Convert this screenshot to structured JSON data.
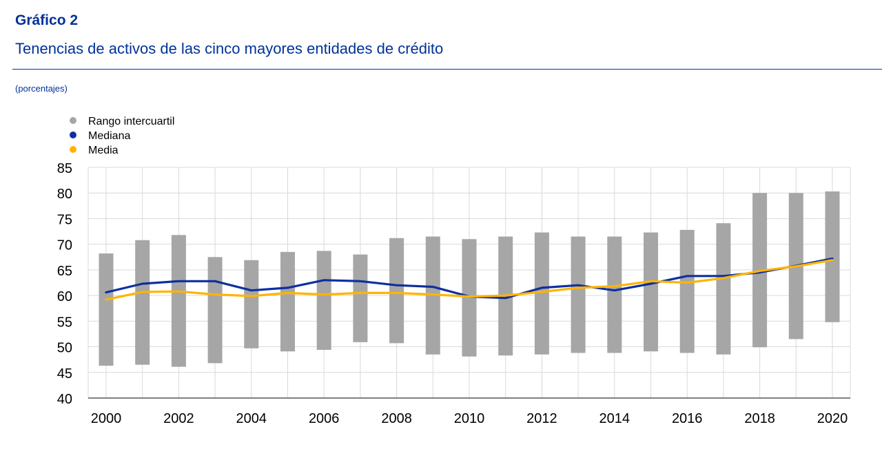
{
  "header": {
    "title": "Gráfico 2",
    "subtitle": "Tenencias de activos de las cinco mayores entidades de crédito",
    "unit": "(porcentajes)"
  },
  "colors": {
    "title": "#003299",
    "range": "#a6a6a6",
    "median": "#0d2fa0",
    "mean": "#ffb400",
    "grid": "#d9d9d9"
  },
  "chart_data": {
    "type": "bar",
    "title": "",
    "xlabel": "",
    "ylabel": "",
    "ylim": [
      40,
      85
    ],
    "yticks": [
      40,
      45,
      50,
      55,
      60,
      65,
      70,
      75,
      80,
      85
    ],
    "grid": true,
    "legend_position": "top-left",
    "x": [
      2000,
      2001,
      2002,
      2003,
      2004,
      2005,
      2006,
      2007,
      2008,
      2009,
      2010,
      2011,
      2012,
      2013,
      2014,
      2015,
      2016,
      2017,
      2018,
      2019,
      2020
    ],
    "xtick_labels": [
      "2000",
      "2002",
      "2004",
      "2006",
      "2008",
      "2010",
      "2012",
      "2014",
      "2016",
      "2018",
      "2020"
    ],
    "series": [
      {
        "name": "Rango intercuartil",
        "kind": "range-bar",
        "color": "#a6a6a6",
        "low": [
          46.3,
          46.5,
          46.1,
          46.8,
          49.7,
          49.1,
          49.4,
          50.9,
          50.7,
          48.5,
          48.1,
          48.3,
          48.5,
          48.8,
          48.8,
          49.1,
          48.8,
          48.5,
          49.9,
          51.5,
          54.8
        ],
        "high": [
          68.2,
          70.8,
          71.8,
          67.5,
          66.9,
          68.5,
          68.7,
          68.0,
          71.2,
          71.5,
          71.0,
          71.5,
          72.3,
          71.5,
          71.5,
          72.3,
          72.8,
          74.1,
          80.0,
          80.0,
          80.3
        ]
      },
      {
        "name": "Mediana",
        "kind": "line",
        "color": "#0d2fa0",
        "values": [
          60.6,
          62.3,
          62.8,
          62.8,
          61.0,
          61.5,
          63.0,
          62.8,
          62.0,
          61.7,
          59.8,
          59.5,
          61.5,
          62.0,
          61.0,
          62.3,
          63.8,
          63.8,
          64.5,
          65.8,
          67.2
        ]
      },
      {
        "name": "Media",
        "kind": "line",
        "color": "#ffb400",
        "values": [
          59.2,
          60.7,
          60.8,
          60.2,
          59.9,
          60.5,
          60.2,
          60.5,
          60.5,
          60.2,
          59.8,
          60.0,
          60.7,
          61.5,
          61.8,
          62.8,
          62.5,
          63.4,
          64.8,
          65.7,
          66.9
        ]
      }
    ]
  }
}
